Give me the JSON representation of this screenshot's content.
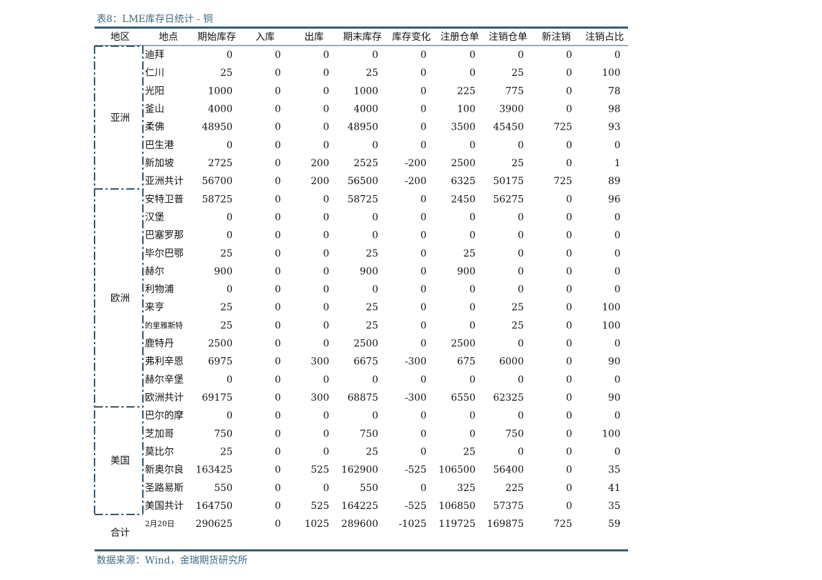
{
  "title": "表8：LME库存日统计 - 铜",
  "headers": [
    "地区",
    "地点",
    "期始库存",
    "入库",
    "出库",
    "期末库存",
    "库存变化",
    "注册仓单",
    "注销仓单",
    "新注销",
    "注销占比"
  ],
  "regions": [
    {
      "name": "亚洲",
      "rows": [
        {
          "place": "迪拜",
          "values": [
            0,
            0,
            0,
            0,
            0,
            0,
            0,
            0,
            0
          ]
        },
        {
          "place": "仁川",
          "values": [
            25,
            0,
            0,
            25,
            0,
            0,
            25,
            0,
            100
          ]
        },
        {
          "place": "光阳",
          "values": [
            1000,
            0,
            0,
            1000,
            0,
            225,
            775,
            0,
            78
          ]
        },
        {
          "place": "釜山",
          "values": [
            4000,
            0,
            0,
            4000,
            0,
            100,
            3900,
            0,
            98
          ]
        },
        {
          "place": "柔佛",
          "values": [
            48950,
            0,
            0,
            48950,
            0,
            3500,
            45450,
            725,
            93
          ]
        },
        {
          "place": "巴生港",
          "values": [
            0,
            0,
            0,
            0,
            0,
            0,
            0,
            0,
            0
          ]
        },
        {
          "place": "新加坡",
          "values": [
            2725,
            0,
            200,
            2525,
            -200,
            2500,
            25,
            0,
            1
          ]
        },
        {
          "place": "亚洲共计",
          "values": [
            56700,
            0,
            200,
            56500,
            -200,
            6325,
            50175,
            725,
            89
          ]
        }
      ]
    },
    {
      "name": "欧洲",
      "rows": [
        {
          "place": "安特卫普",
          "values": [
            58725,
            0,
            0,
            58725,
            0,
            2450,
            56275,
            0,
            96
          ]
        },
        {
          "place": "汉堡",
          "values": [
            0,
            0,
            0,
            0,
            0,
            0,
            0,
            0,
            0
          ]
        },
        {
          "place": "巴塞罗那",
          "values": [
            0,
            0,
            0,
            0,
            0,
            0,
            0,
            0,
            0
          ]
        },
        {
          "place": "毕尔巴鄂",
          "values": [
            25,
            0,
            0,
            25,
            0,
            25,
            0,
            0,
            0
          ]
        },
        {
          "place": "赫尔",
          "values": [
            900,
            0,
            0,
            900,
            0,
            900,
            0,
            0,
            0
          ]
        },
        {
          "place": "利物浦",
          "values": [
            0,
            0,
            0,
            0,
            0,
            0,
            0,
            0,
            0
          ]
        },
        {
          "place": "来亨",
          "values": [
            25,
            0,
            0,
            25,
            0,
            0,
            25,
            0,
            100
          ]
        },
        {
          "place": "的里雅斯特",
          "values": [
            25,
            0,
            0,
            25,
            0,
            0,
            25,
            0,
            100
          ]
        },
        {
          "place": "鹿特丹",
          "values": [
            2500,
            0,
            0,
            2500,
            0,
            2500,
            0,
            0,
            0
          ]
        },
        {
          "place": "弗利辛恩",
          "values": [
            6975,
            0,
            300,
            6675,
            -300,
            675,
            6000,
            0,
            90
          ]
        },
        {
          "place": "赫尔辛堡",
          "values": [
            0,
            0,
            0,
            0,
            0,
            0,
            0,
            0,
            0
          ]
        },
        {
          "place": "欧洲共计",
          "values": [
            69175,
            0,
            300,
            68875,
            -300,
            6550,
            62325,
            0,
            90
          ]
        }
      ]
    },
    {
      "name": "美国",
      "rows": [
        {
          "place": "巴尔的摩",
          "values": [
            0,
            0,
            0,
            0,
            0,
            0,
            0,
            0,
            0
          ]
        },
        {
          "place": "芝加哥",
          "values": [
            750,
            0,
            0,
            750,
            0,
            0,
            750,
            0,
            100
          ]
        },
        {
          "place": "莫比尔",
          "values": [
            25,
            0,
            0,
            25,
            0,
            25,
            0,
            0,
            0
          ]
        },
        {
          "place": "新奥尔良",
          "values": [
            163425,
            0,
            525,
            162900,
            -525,
            106500,
            56400,
            0,
            35
          ]
        },
        {
          "place": "圣路易斯",
          "values": [
            550,
            0,
            0,
            550,
            0,
            325,
            225,
            0,
            41
          ]
        },
        {
          "place": "美国共计",
          "values": [
            164750,
            0,
            525,
            164225,
            -525,
            106850,
            57375,
            0,
            35
          ]
        }
      ]
    }
  ],
  "total": {
    "name": "合计",
    "place": "2月20日",
    "values": [
      290625,
      0,
      1025,
      289600,
      -1025,
      119725,
      169875,
      725,
      59
    ]
  },
  "source": "数据来源：Wind，金瑞期货研究所"
}
